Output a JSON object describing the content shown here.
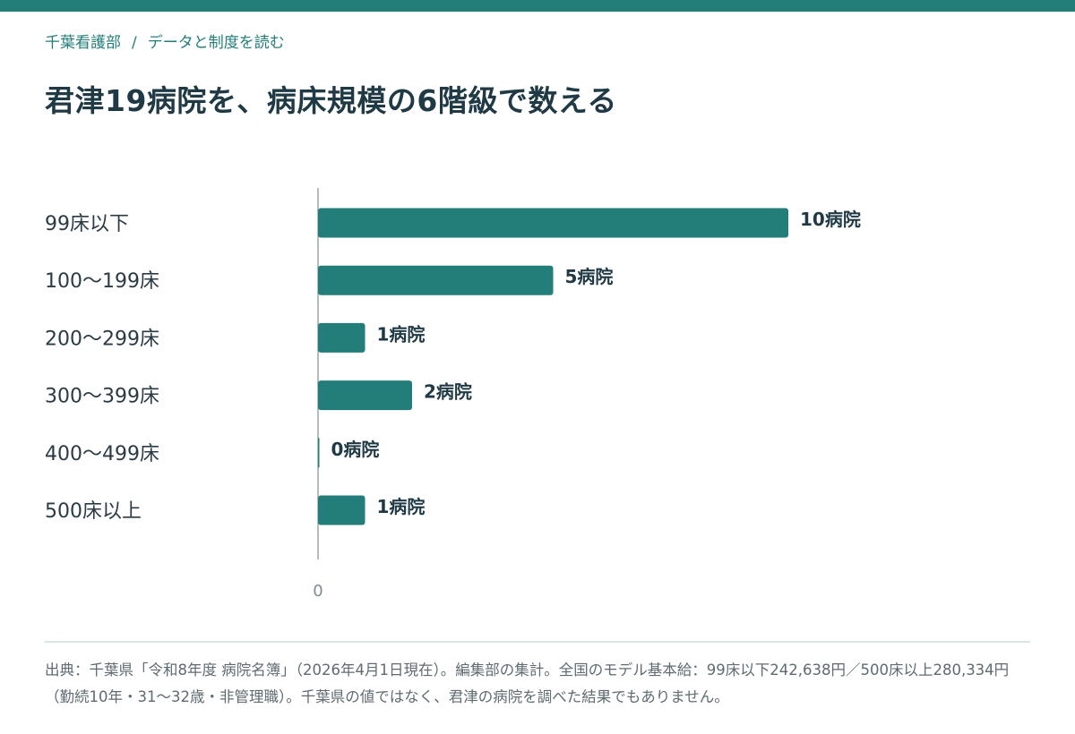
{
  "breadcrumb": {
    "home": "千葉看護部",
    "separator": "/",
    "current": "データと制度を読む"
  },
  "page_title": "君津19病院を、病床規模の6階級で数える",
  "colors": {
    "accent": "#237e79",
    "title": "#1f3a44",
    "axis": "#9aa5a9"
  },
  "chart_data": {
    "type": "bar",
    "orientation": "horizontal",
    "categories": [
      "99床以下",
      "100〜199床",
      "200〜299床",
      "300〜399床",
      "400〜499床",
      "500床以上"
    ],
    "values": [
      10,
      5,
      1,
      2,
      0,
      1
    ],
    "value_labels": [
      "10病院",
      "5病院",
      "1病院",
      "2病院",
      "0病院",
      "1病院"
    ],
    "xlim": [
      0,
      10
    ],
    "x_ticks": [
      "0"
    ],
    "grid": false,
    "legend": "none"
  },
  "source_note": "出典：千葉県「令和8年度 病院名簿」（2026年4月1日現在）。編集部の集計。全国のモデル基本給：99床以下242,638円／500床以上280,334円（勤続10年・31〜32歳・非管理職）。千葉県の値ではなく、君津の病院を調べた結果でもありません。"
}
